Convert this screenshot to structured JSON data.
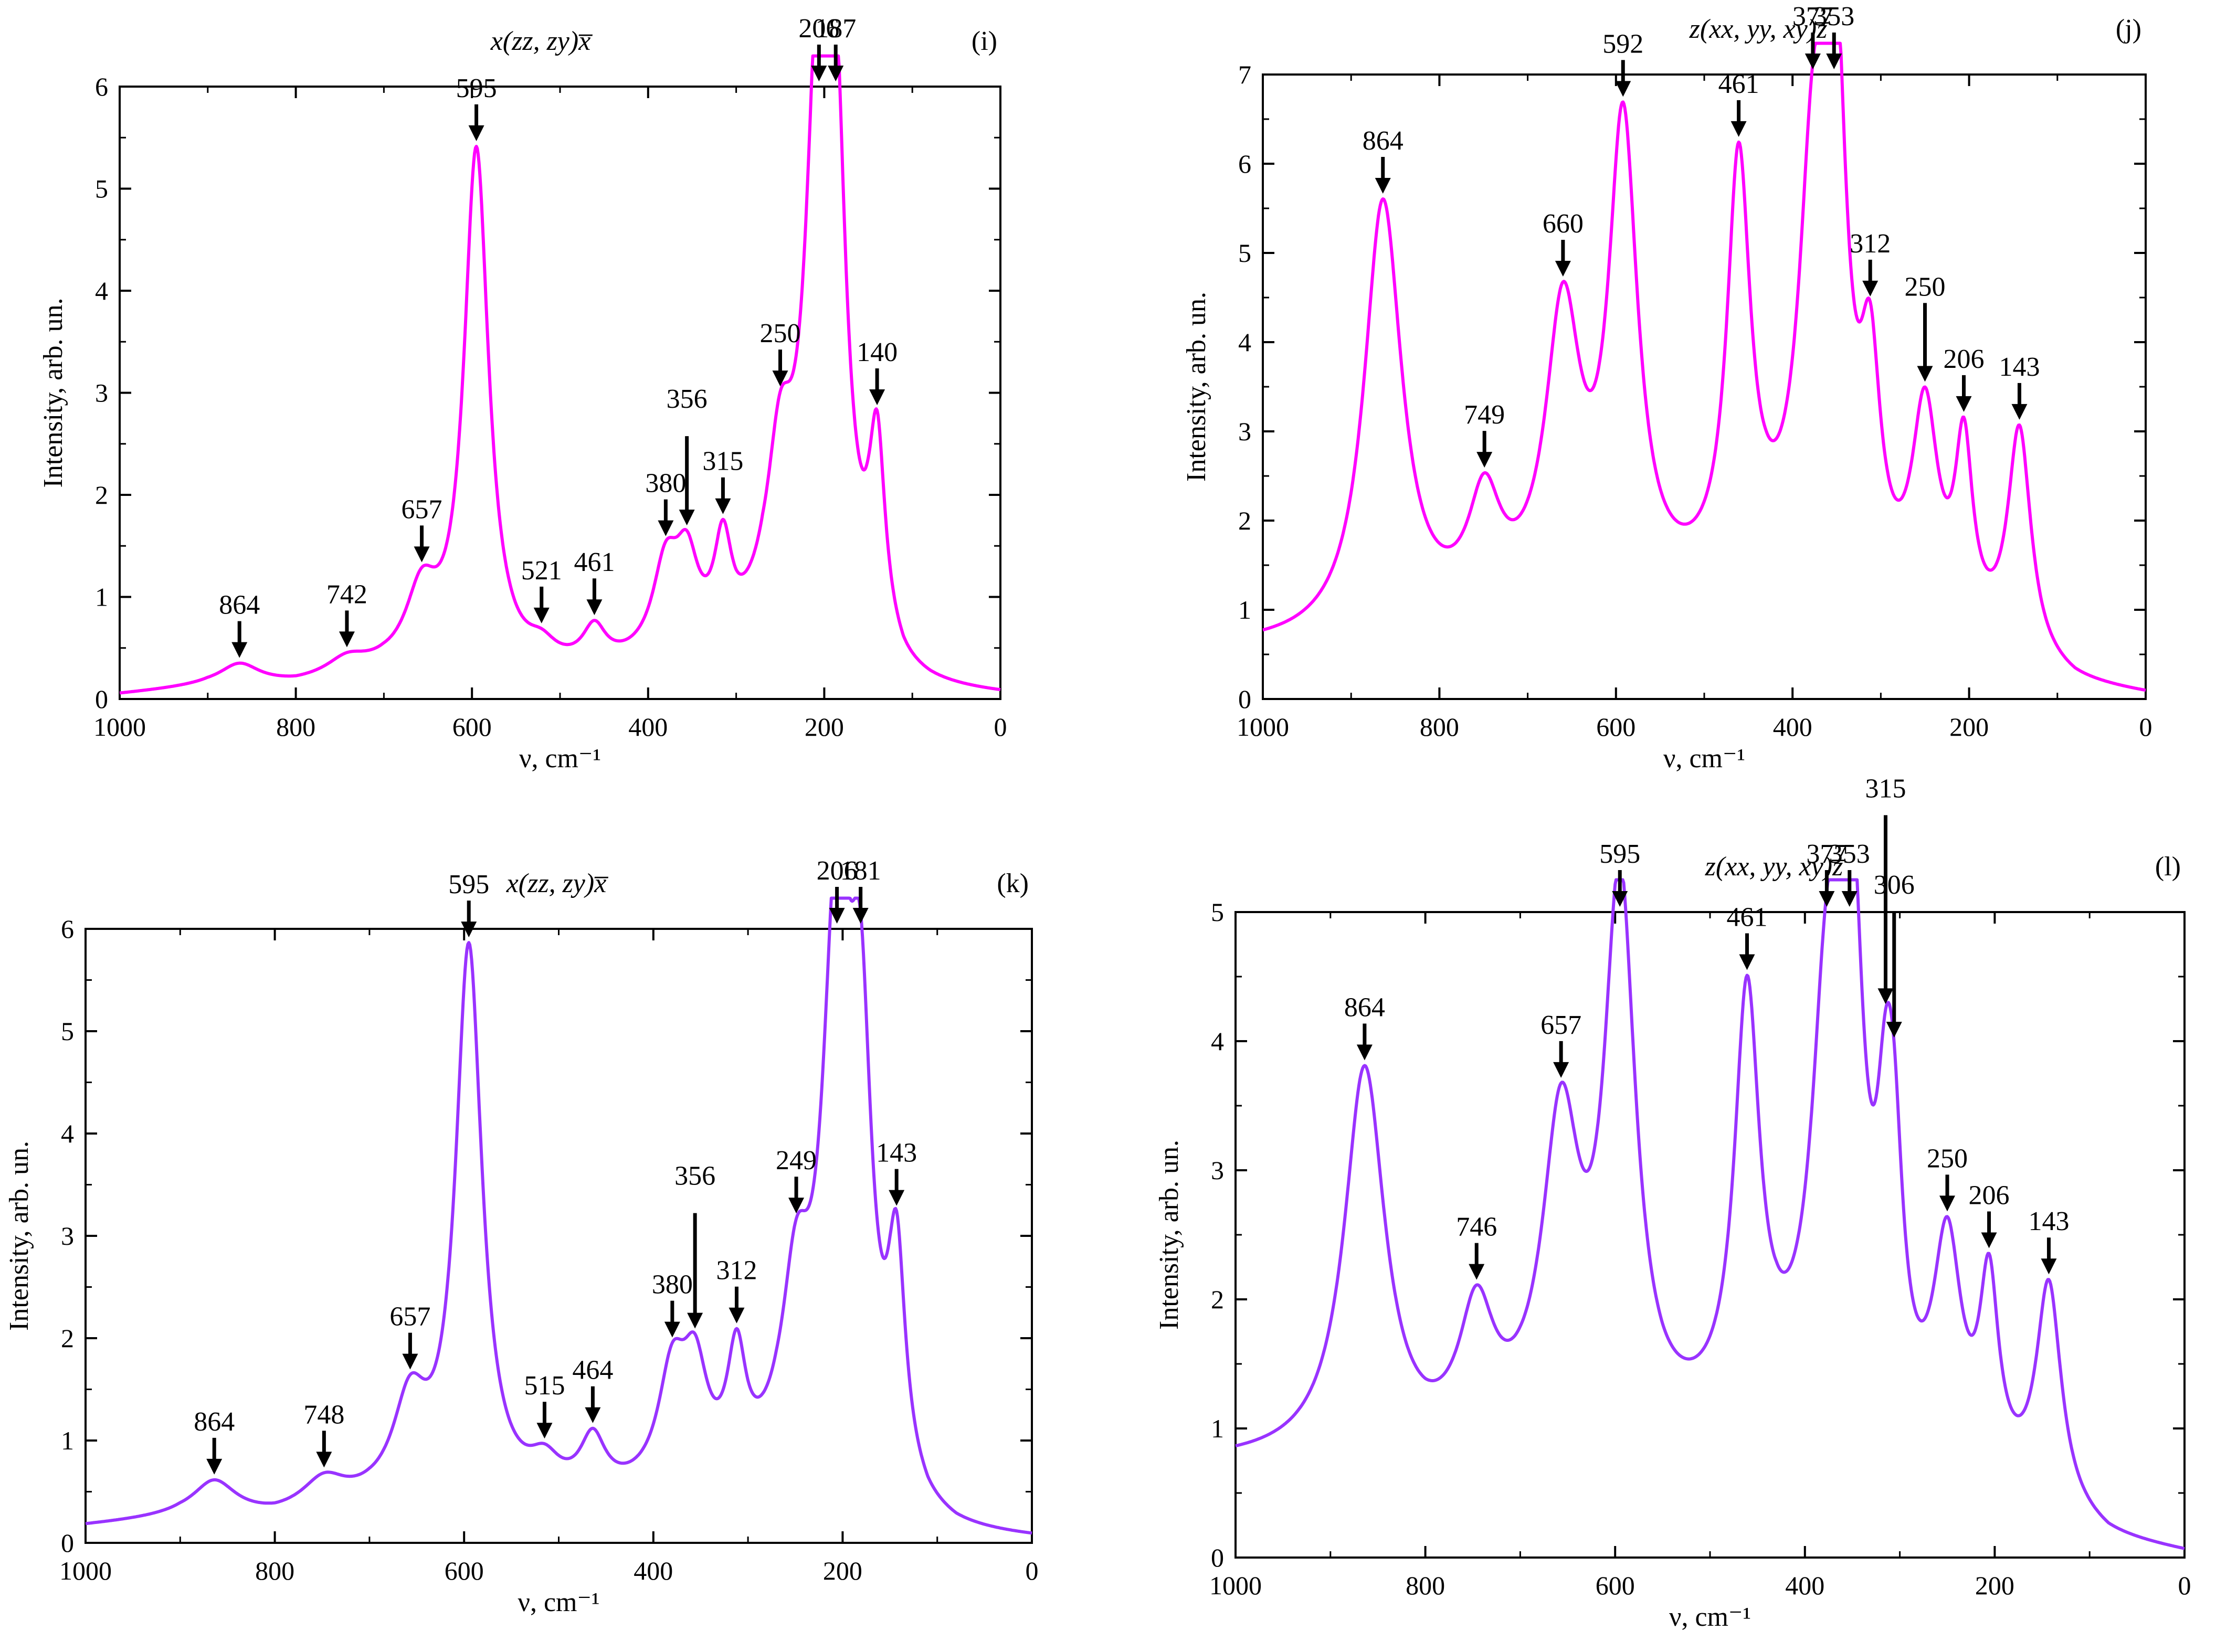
{
  "chart_data": [
    {
      "id": "i",
      "type": "line",
      "title": "x(zz, zy)x̅",
      "panel_label": "(i)",
      "xlabel": "ν, cm⁻¹",
      "ylabel": "Intensity, arb. un.",
      "xlim": [
        1000,
        0
      ],
      "ylim": [
        0,
        6
      ],
      "xticks": [
        1000,
        800,
        600,
        400,
        200,
        0
      ],
      "yticks": [
        0,
        1,
        2,
        3,
        4,
        5,
        6
      ],
      "color": "#ff00ff",
      "baseline": [
        [
          1000,
          0.03
        ],
        [
          900,
          0.1
        ],
        [
          800,
          0.1
        ],
        [
          700,
          0.2
        ],
        [
          550,
          0.15
        ],
        [
          450,
          0.2
        ],
        [
          300,
          0.35
        ],
        [
          270,
          0.5
        ],
        [
          150,
          0.3
        ],
        [
          110,
          0.05
        ],
        [
          80,
          0.02
        ],
        [
          0,
          0.0
        ]
      ],
      "peaks": [
        {
          "label": "864",
          "pos": 864,
          "height": 0.22,
          "width": 28
        },
        {
          "label": "742",
          "pos": 742,
          "height": 0.17,
          "width": 28
        },
        {
          "label": "657",
          "pos": 657,
          "height": 0.75,
          "width": 22
        },
        {
          "label": "595",
          "pos": 595,
          "height": 5.5,
          "width": 17
        },
        {
          "label": "521",
          "pos": 521,
          "height": 0.18,
          "width": 20
        },
        {
          "label": "461",
          "pos": 461,
          "height": 0.38,
          "width": 16
        },
        {
          "label": "380",
          "pos": 380,
          "height": 0.9,
          "width": 18
        },
        {
          "label": "356",
          "pos": 356,
          "height": 0.85,
          "width": 16
        },
        {
          "label": "315",
          "pos": 315,
          "height": 1.0,
          "width": 12
        },
        {
          "label": "250",
          "pos": 250,
          "height": 1.6,
          "width": 18
        },
        {
          "label": "206",
          "pos": 206,
          "height": 5.83,
          "width": 18
        },
        {
          "label": "187",
          "pos": 187,
          "height": 4.1,
          "width": 14
        },
        {
          "label": "140",
          "pos": 140,
          "height": 1.98,
          "width": 11
        }
      ]
    },
    {
      "id": "j",
      "type": "line",
      "title": "z(xx, yy, xy)z̅",
      "panel_label": "(j)",
      "xlabel": "ν, cm⁻¹",
      "ylabel": "Intensity, arb. un.",
      "xlim": [
        1000,
        0
      ],
      "ylim": [
        0,
        7
      ],
      "xticks": [
        1000,
        800,
        600,
        400,
        200,
        0
      ],
      "yticks": [
        0,
        1,
        2,
        3,
        4,
        5,
        6,
        7
      ],
      "color": "#ff00ff",
      "baseline": [
        [
          1000,
          0.55
        ],
        [
          900,
          0.55
        ],
        [
          800,
          0.7
        ],
        [
          700,
          0.85
        ],
        [
          550,
          0.95
        ],
        [
          430,
          1.1
        ],
        [
          300,
          0.7
        ],
        [
          200,
          0.5
        ],
        [
          120,
          0.2
        ],
        [
          80,
          0.08
        ],
        [
          0,
          0.0
        ]
      ],
      "peaks": [
        {
          "label": "864",
          "pos": 864,
          "height": 5.23,
          "width": 26
        },
        {
          "label": "749",
          "pos": 749,
          "height": 1.27,
          "width": 22
        },
        {
          "label": "660",
          "pos": 660,
          "height": 3.4,
          "width": 24
        },
        {
          "label": "592",
          "pos": 592,
          "height": 5.6,
          "width": 20
        },
        {
          "label": "461",
          "pos": 461,
          "height": 4.95,
          "width": 16
        },
        {
          "label": "377",
          "pos": 377,
          "height": 4.3,
          "width": 20
        },
        {
          "label": "353",
          "pos": 353,
          "height": 6.25,
          "width": 16
        },
        {
          "label": "312",
          "pos": 312,
          "height": 2.44,
          "width": 14
        },
        {
          "label": "250",
          "pos": 250,
          "height": 2.47,
          "width": 18
        },
        {
          "label": "206",
          "pos": 206,
          "height": 2.1,
          "width": 12
        },
        {
          "label": "143",
          "pos": 143,
          "height": 2.73,
          "width": 16
        }
      ]
    },
    {
      "id": "k",
      "type": "line",
      "title": "x(zz, zy)x̅",
      "panel_label": "(k)",
      "xlabel": "ν, cm⁻¹",
      "ylabel": "Intensity, arb. un.",
      "xlim": [
        1000,
        0
      ],
      "ylim": [
        0,
        6
      ],
      "xticks": [
        1000,
        800,
        600,
        400,
        200,
        0
      ],
      "yticks": [
        0,
        1,
        2,
        3,
        4,
        5,
        6
      ],
      "color": "#9933ff",
      "baseline": [
        [
          1000,
          0.15
        ],
        [
          900,
          0.22
        ],
        [
          800,
          0.2
        ],
        [
          700,
          0.3
        ],
        [
          550,
          0.3
        ],
        [
          450,
          0.35
        ],
        [
          300,
          0.45
        ],
        [
          270,
          0.55
        ],
        [
          150,
          0.35
        ],
        [
          110,
          0.08
        ],
        [
          80,
          0.02
        ],
        [
          0,
          0.0
        ]
      ],
      "peaks": [
        {
          "label": "864",
          "pos": 864,
          "height": 0.37,
          "width": 28
        },
        {
          "label": "748",
          "pos": 748,
          "height": 0.3,
          "width": 28
        },
        {
          "label": "657",
          "pos": 657,
          "height": 0.97,
          "width": 22
        },
        {
          "label": "595",
          "pos": 595,
          "height": 5.8,
          "width": 17
        },
        {
          "label": "515",
          "pos": 515,
          "height": 0.3,
          "width": 20
        },
        {
          "label": "464",
          "pos": 464,
          "height": 0.55,
          "width": 16
        },
        {
          "label": "380",
          "pos": 380,
          "height": 1.13,
          "width": 18
        },
        {
          "label": "356",
          "pos": 356,
          "height": 1.05,
          "width": 16
        },
        {
          "label": "312",
          "pos": 312,
          "height": 1.2,
          "width": 12
        },
        {
          "label": "249",
          "pos": 249,
          "height": 1.7,
          "width": 18
        },
        {
          "label": "206",
          "pos": 206,
          "height": 5.78,
          "width": 18
        },
        {
          "label": "181",
          "pos": 181,
          "height": 3.9,
          "width": 14
        },
        {
          "label": "143",
          "pos": 143,
          "height": 2.18,
          "width": 11
        }
      ]
    },
    {
      "id": "l",
      "type": "line",
      "title": "z(xx, yy, xy)z̅",
      "panel_label": "(l)",
      "xlabel": "ν, cm⁻¹",
      "ylabel": "Intensity, arb. un.",
      "xlim": [
        1000,
        0
      ],
      "ylim": [
        0,
        5
      ],
      "xticks": [
        1000,
        800,
        600,
        400,
        200,
        0
      ],
      "yticks": [
        0,
        1,
        2,
        3,
        4,
        5
      ],
      "color": "#9933ff",
      "baseline": [
        [
          1000,
          0.72
        ],
        [
          900,
          0.72
        ],
        [
          800,
          0.7
        ],
        [
          700,
          0.8
        ],
        [
          550,
          0.8
        ],
        [
          430,
          0.95
        ],
        [
          300,
          0.6
        ],
        [
          200,
          0.45
        ],
        [
          120,
          0.2
        ],
        [
          80,
          0.08
        ],
        [
          0,
          0.0
        ]
      ],
      "peaks": [
        {
          "label": "864",
          "pos": 864,
          "height": 3.22,
          "width": 26
        },
        {
          "label": "746",
          "pos": 746,
          "height": 1.03,
          "width": 22
        },
        {
          "label": "657",
          "pos": 657,
          "height": 2.5,
          "width": 24
        },
        {
          "label": "595",
          "pos": 595,
          "height": 4.48,
          "width": 20
        },
        {
          "label": "461",
          "pos": 461,
          "height": 3.42,
          "width": 16
        },
        {
          "label": "377",
          "pos": 377,
          "height": 3.0,
          "width": 20
        },
        {
          "label": "353",
          "pos": 353,
          "height": 4.35,
          "width": 16
        },
        {
          "label": "315",
          "pos": 315,
          "height": 1.67,
          "width": 12
        },
        {
          "label": "306",
          "pos": 306,
          "height": 1.6,
          "width": 12
        },
        {
          "label": "250",
          "pos": 250,
          "height": 1.78,
          "width": 18
        },
        {
          "label": "206",
          "pos": 206,
          "height": 1.5,
          "width": 12
        },
        {
          "label": "143",
          "pos": 143,
          "height": 1.83,
          "width": 16
        }
      ]
    }
  ]
}
